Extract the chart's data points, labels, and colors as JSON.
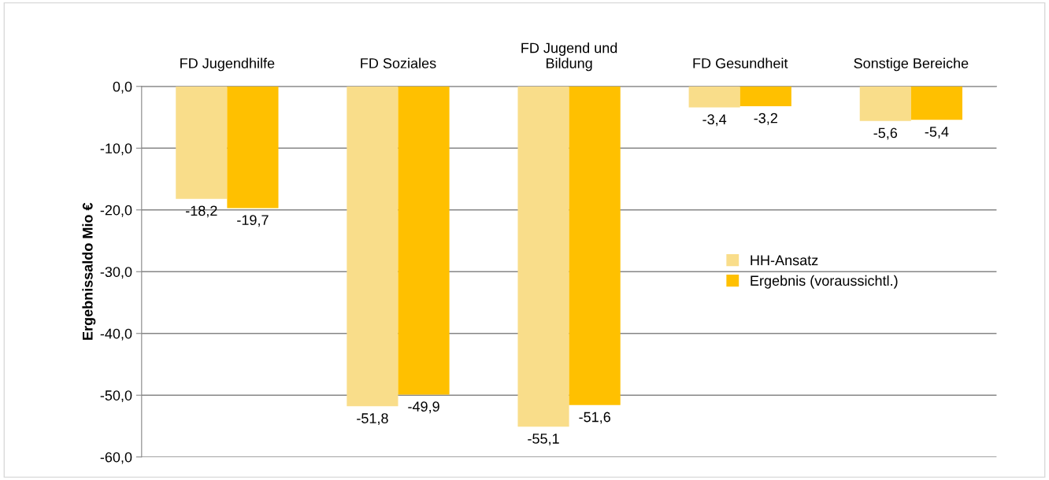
{
  "chart_data": {
    "type": "bar",
    "ylabel": "Ergebnissaldo Mio €",
    "categories": [
      "FD Jugendhilfe",
      "FD Soziales",
      "FD Jugend und\nBildung",
      "FD Gesundheit",
      "Sonstige Bereiche"
    ],
    "series": [
      {
        "name": "HH-Ansatz",
        "color": "#f9dd8a",
        "values": [
          -18.2,
          -51.8,
          -55.1,
          -3.4,
          -5.6
        ],
        "value_labels": [
          "-18,2",
          "-51,8",
          "-55,1",
          "-3,4",
          "-5,6"
        ]
      },
      {
        "name": "Ergebnis (voraussichtl.)",
        "color": "#ffc000",
        "values": [
          -19.7,
          -49.9,
          -51.6,
          -3.2,
          -5.4
        ],
        "value_labels": [
          "-19,7",
          "-49,9",
          "-51,6",
          "-3,2",
          "-5,4"
        ]
      }
    ],
    "ylim": [
      -60,
      0
    ],
    "yticks": [
      {
        "value": 0,
        "label": "0,0"
      },
      {
        "value": -10,
        "label": "-10,0"
      },
      {
        "value": -20,
        "label": "-20,0"
      },
      {
        "value": -30,
        "label": "-30,0"
      },
      {
        "value": -40,
        "label": "-40,0"
      },
      {
        "value": -50,
        "label": "-50,0"
      },
      {
        "value": -60,
        "label": "-60,0"
      }
    ],
    "grid": "y",
    "legend": "right"
  }
}
